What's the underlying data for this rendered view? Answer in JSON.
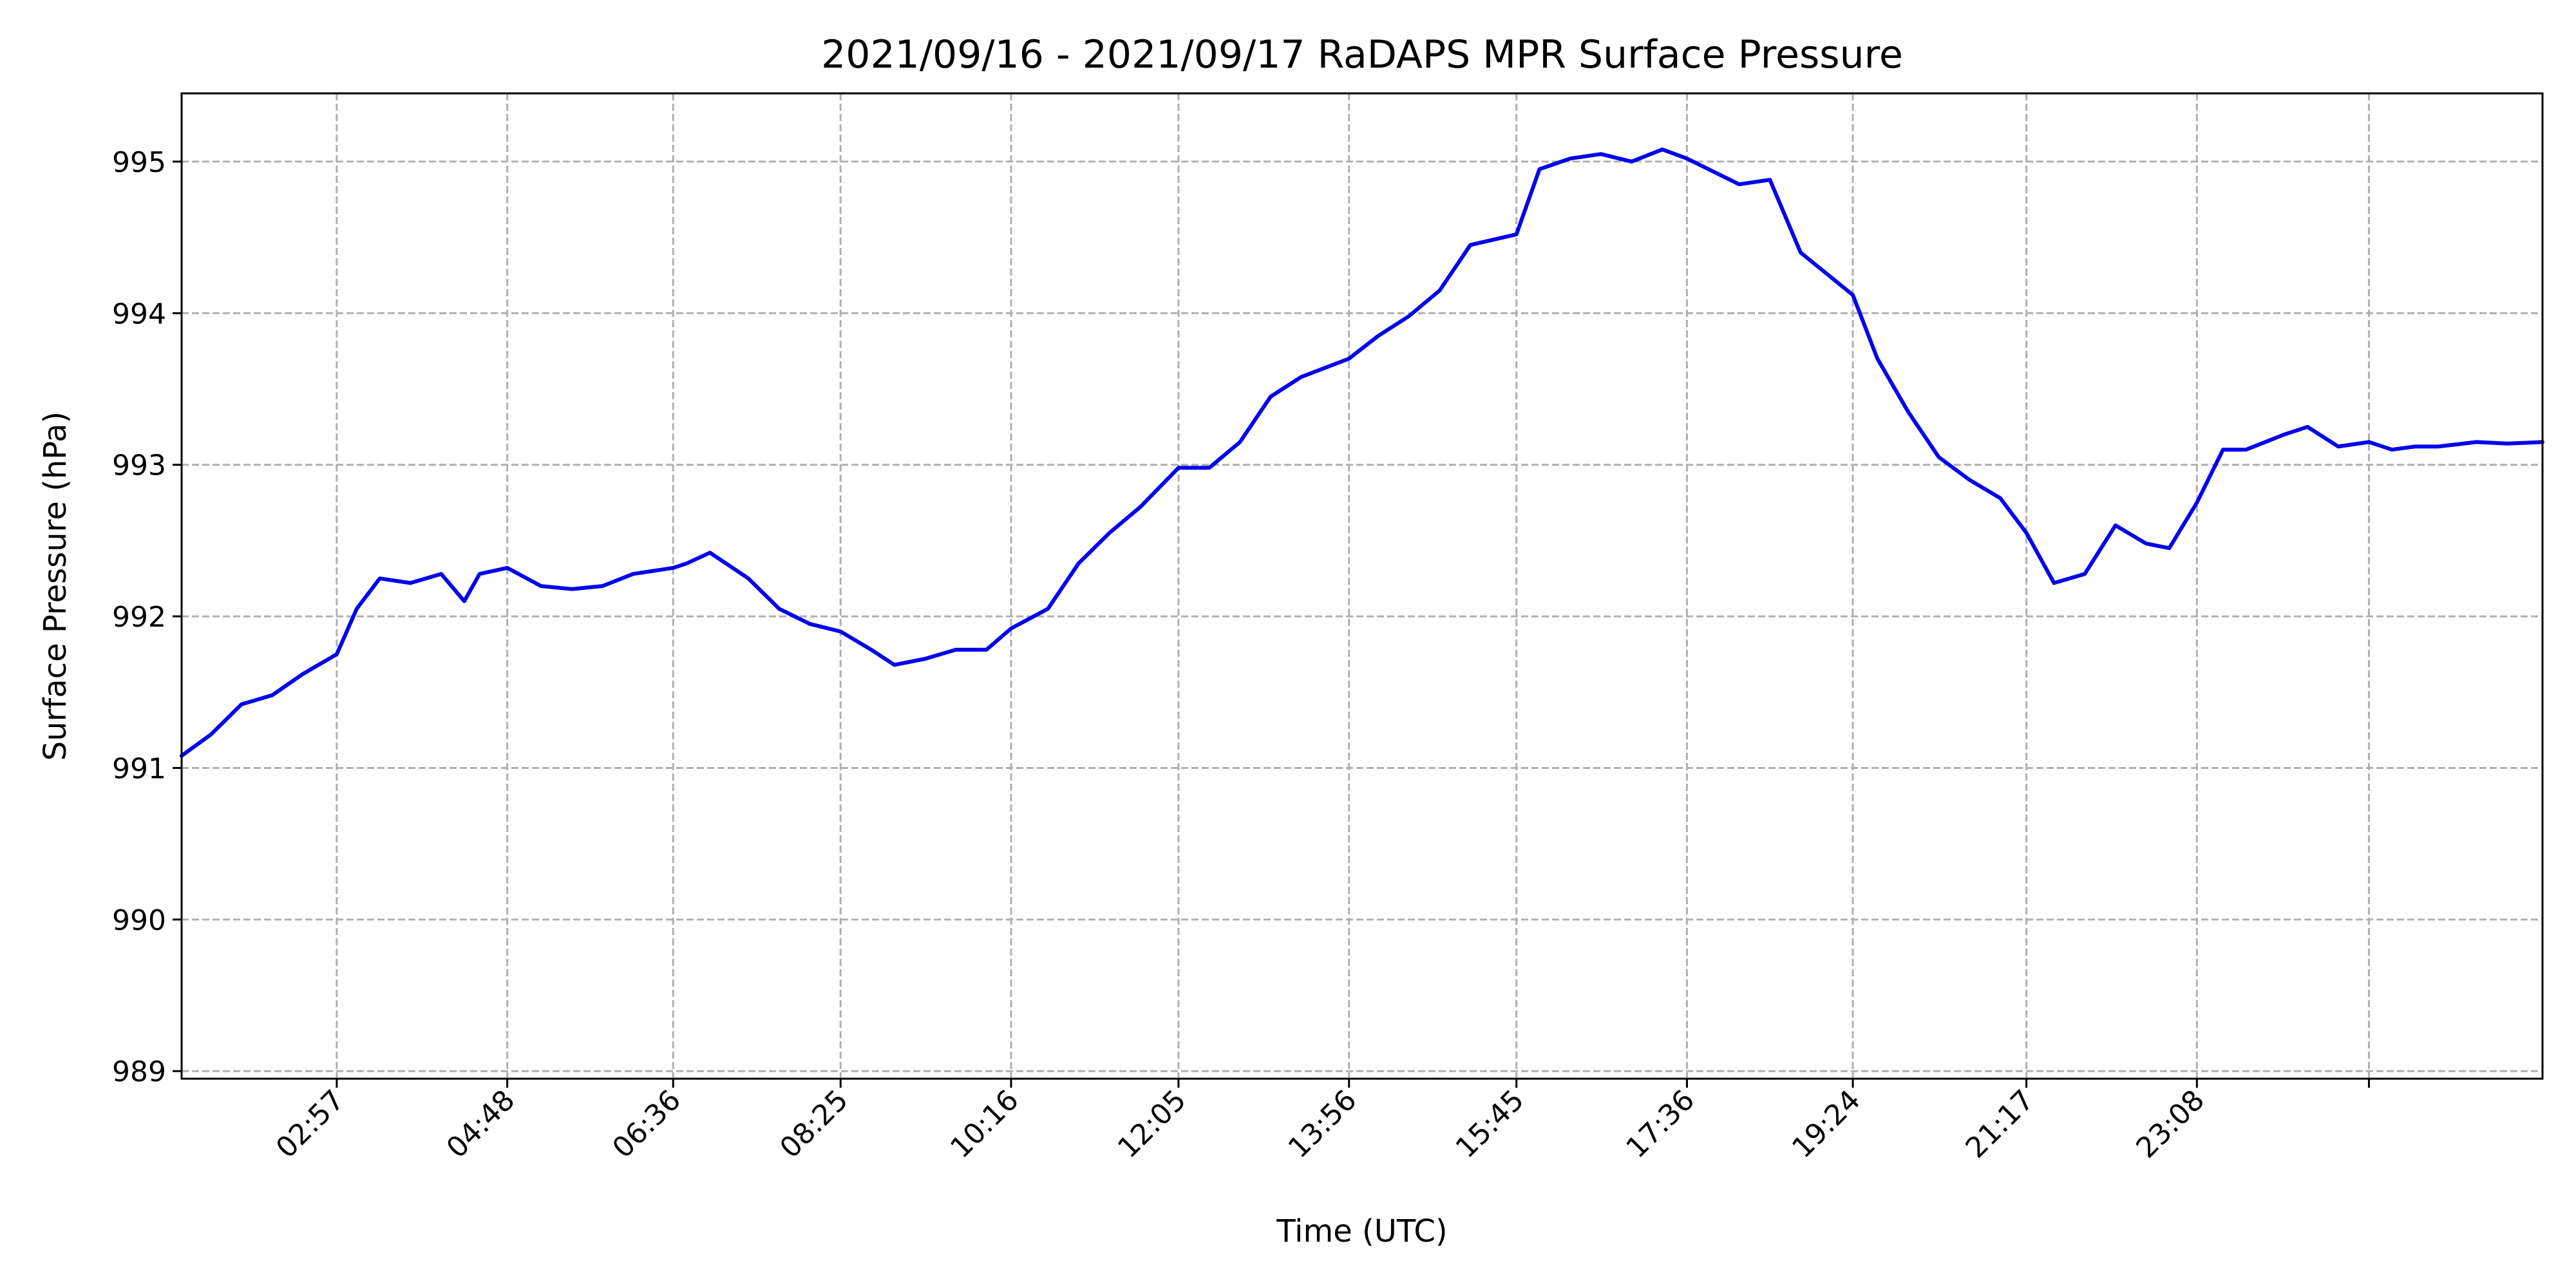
{
  "chart_data": {
    "type": "line",
    "title": "2021/09/16 - 2021/09/17 RaDAPS MPR Surface Pressure",
    "xlabel": "Time (UTC)",
    "ylabel": "Surface Pressure (hPa)",
    "ylim": [
      988.95,
      995.45
    ],
    "yticks": [
      989,
      990,
      991,
      992,
      993,
      994,
      995
    ],
    "xlim": [
      "01:16",
      "26:53"
    ],
    "xticks": [
      "02:57",
      "04:48",
      "06:36",
      "08:25",
      "10:16",
      "12:05",
      "13:56",
      "15:45",
      "17:36",
      "19:24",
      "21:17",
      "23:08",
      ""
    ],
    "xtick_times": [
      "02:57",
      "04:48",
      "06:36",
      "08:25",
      "10:16",
      "12:05",
      "13:56",
      "15:45",
      "17:36",
      "19:24",
      "21:17",
      "23:08",
      "25:00"
    ],
    "grid": true,
    "line_color": "#0000ee",
    "series": [
      {
        "x": [
          "01:16",
          "01:35",
          "01:55",
          "02:15",
          "02:35",
          "02:57",
          "03:10",
          "03:25",
          "03:45",
          "04:05",
          "04:20",
          "04:30",
          "04:48",
          "05:10",
          "05:30",
          "05:50",
          "06:10",
          "06:36",
          "06:45",
          "07:00",
          "07:25",
          "07:45",
          "08:05",
          "08:25",
          "08:45",
          "09:00",
          "09:20",
          "09:40",
          "10:00",
          "10:16",
          "10:40",
          "11:00",
          "11:20",
          "11:40",
          "12:05",
          "12:25",
          "12:45",
          "13:05",
          "13:25",
          "13:56",
          "14:15",
          "14:35",
          "14:55",
          "15:15",
          "15:45",
          "16:00",
          "16:20",
          "16:40",
          "17:00",
          "17:20",
          "17:36",
          "17:50",
          "18:10",
          "18:30",
          "18:50",
          "19:24",
          "19:40",
          "20:00",
          "20:20",
          "20:40",
          "21:00",
          "21:17",
          "21:35",
          "21:55",
          "22:15",
          "22:35",
          "22:50",
          "23:08",
          "23:25",
          "23:40",
          "24:05",
          "24:20",
          "24:40",
          "25:00",
          "25:15",
          "25:30",
          "25:45",
          "26:10",
          "26:30",
          "26:53"
        ],
        "y": [
          991.08,
          991.22,
          991.42,
          991.48,
          991.62,
          991.75,
          992.05,
          992.25,
          992.22,
          992.28,
          992.1,
          992.28,
          992.32,
          992.2,
          992.18,
          992.2,
          992.28,
          992.32,
          992.35,
          992.42,
          992.25,
          992.05,
          991.95,
          991.9,
          991.78,
          991.68,
          991.72,
          991.78,
          991.78,
          991.92,
          992.05,
          992.35,
          992.55,
          992.72,
          992.98,
          992.98,
          993.15,
          993.45,
          993.58,
          993.7,
          993.85,
          993.98,
          994.15,
          994.45,
          994.52,
          994.95,
          995.02,
          995.05,
          995.0,
          995.08,
          995.02,
          994.95,
          994.85,
          994.88,
          994.4,
          994.12,
          993.7,
          993.35,
          993.05,
          992.9,
          992.78,
          992.55,
          992.22,
          992.28,
          992.6,
          992.48,
          992.45,
          992.75,
          993.1,
          993.1,
          993.2,
          993.25,
          993.12,
          993.15,
          993.1,
          993.12,
          993.12,
          993.15,
          993.14,
          993.15
        ]
      }
    ]
  }
}
